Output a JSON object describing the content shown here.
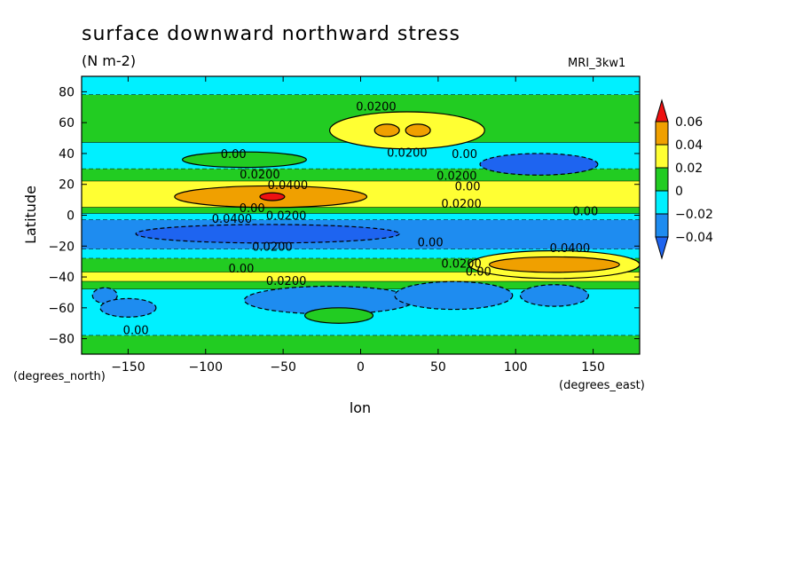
{
  "chart_data": {
    "type": "heatmap",
    "title": "surface downward northward stress",
    "units": "(N m-2)",
    "model": "MRI_3kw1",
    "xlabel": "lon",
    "ylabel": "Latitude",
    "x_unit_label": "(degrees_east)",
    "y_unit_label": "(degrees_north)",
    "xlim": [
      -180,
      180
    ],
    "ylim": [
      -90,
      90
    ],
    "x_ticks": [
      -150,
      -100,
      -50,
      0,
      50,
      100,
      150
    ],
    "y_ticks": [
      80,
      60,
      40,
      20,
      0,
      -20,
      -40,
      -60,
      -80
    ],
    "colorbar": {
      "levels": [
        -0.04,
        -0.02,
        0,
        0.02,
        0.04,
        0.06
      ],
      "labels": [
        "0.06",
        "0.04",
        "0.02",
        "0",
        "−0.02",
        "−0.04"
      ],
      "colors": {
        "below_-0.04": "#1e64f0",
        "-0.04_to_-0.02": "#1e8cf0",
        "-0.02_to_0": "#00f0ff",
        "0_to_0.02": "#22cc22",
        "0.02_to_0.04": "#ffff33",
        "0.04_to_0.06": "#f0a000",
        "above_0.06": "#ee1111"
      }
    },
    "zonal_bands": [
      {
        "lat_from": 90,
        "lat_to": 78,
        "value": -0.01
      },
      {
        "lat_from": 78,
        "lat_to": 47,
        "value": 0.01
      },
      {
        "lat_from": 47,
        "lat_to": 30,
        "value": -0.01
      },
      {
        "lat_from": 30,
        "lat_to": 22,
        "value": 0.01
      },
      {
        "lat_from": 22,
        "lat_to": 5,
        "value": 0.03
      },
      {
        "lat_from": 5,
        "lat_to": 1,
        "value": 0.01
      },
      {
        "lat_from": 1,
        "lat_to": -3,
        "value": -0.01
      },
      {
        "lat_from": -3,
        "lat_to": -22,
        "value": -0.03
      },
      {
        "lat_from": -22,
        "lat_to": -28,
        "value": -0.01
      },
      {
        "lat_from": -28,
        "lat_to": -37,
        "value": 0.01
      },
      {
        "lat_from": -37,
        "lat_to": -43,
        "value": 0.03
      },
      {
        "lat_from": -43,
        "lat_to": -48,
        "value": 0.01
      },
      {
        "lat_from": -48,
        "lat_to": -78,
        "value": -0.01
      },
      {
        "lat_from": -78,
        "lat_to": -90,
        "value": 0.01
      }
    ],
    "features": [
      {
        "lon": -58,
        "lat": 12,
        "rlon": 62,
        "rlat": 7,
        "value": 0.05
      },
      {
        "lon": -57,
        "lat": 12,
        "rlon": 8,
        "rlat": 2.5,
        "value": 0.07
      },
      {
        "lon": 30,
        "lat": 55,
        "rlon": 50,
        "rlat": 12,
        "value": 0.03
      },
      {
        "lon": 17,
        "lat": 55,
        "rlon": 8,
        "rlat": 4,
        "value": 0.05
      },
      {
        "lon": 37,
        "lat": 55,
        "rlon": 8,
        "rlat": 4,
        "value": 0.05
      },
      {
        "lon": 125,
        "lat": -32,
        "rlon": 55,
        "rlat": 9,
        "value": 0.03
      },
      {
        "lon": 125,
        "lat": -32,
        "rlon": 42,
        "rlat": 5,
        "value": 0.05
      },
      {
        "lon": -60,
        "lat": -12,
        "rlon": 85,
        "rlat": 6,
        "value": -0.05
      },
      {
        "lon": 115,
        "lat": 33,
        "rlon": 38,
        "rlat": 7,
        "value": -0.05
      },
      {
        "lon": -75,
        "lat": 36,
        "rlon": 40,
        "rlat": 5,
        "value": 0.01
      },
      {
        "lon": -20,
        "lat": -55,
        "rlon": 55,
        "rlat": 9,
        "value": -0.03
      },
      {
        "lon": 60,
        "lat": -52,
        "rlon": 38,
        "rlat": 9,
        "value": -0.03
      },
      {
        "lon": 125,
        "lat": -52,
        "rlon": 22,
        "rlat": 7,
        "value": -0.03
      },
      {
        "lon": -165,
        "lat": -52,
        "rlon": 8,
        "rlat": 5,
        "value": -0.03
      },
      {
        "lon": -14,
        "lat": -65,
        "rlon": 22,
        "rlat": 5,
        "value": 0.01
      },
      {
        "lon": -150,
        "lat": -60,
        "rlon": 18,
        "rlat": 6,
        "value": -0.03
      }
    ],
    "contour_labels": [
      {
        "text": "0.0200",
        "lon": 10,
        "lat": 68
      },
      {
        "text": "0.00",
        "lon": -82,
        "lat": 37
      },
      {
        "text": "0.0200",
        "lon": 30,
        "lat": 38
      },
      {
        "text": "0.00",
        "lon": 67,
        "lat": 37
      },
      {
        "text": "0.0200",
        "lon": -65,
        "lat": 24
      },
      {
        "text": "0.0400",
        "lon": -47,
        "lat": 17
      },
      {
        "text": "0.0200",
        "lon": 62,
        "lat": 23
      },
      {
        "text": "0.00",
        "lon": 69,
        "lat": 16
      },
      {
        "text": "0.0200",
        "lon": 65,
        "lat": 5
      },
      {
        "text": "0.00",
        "lon": -70,
        "lat": 2
      },
      {
        "text": "0.0200",
        "lon": -48,
        "lat": -3
      },
      {
        "text": "0.00",
        "lon": 145,
        "lat": 0
      },
      {
        "text": "0.0400",
        "lon": -83,
        "lat": -5
      },
      {
        "text": "0.0200",
        "lon": -57,
        "lat": -23
      },
      {
        "text": "0.00",
        "lon": 45,
        "lat": -20
      },
      {
        "text": "0.0400",
        "lon": 135,
        "lat": -24
      },
      {
        "text": "0.00",
        "lon": -77,
        "lat": -37
      },
      {
        "text": "0.0200",
        "lon": 65,
        "lat": -34
      },
      {
        "text": "0.00",
        "lon": 76,
        "lat": -39
      },
      {
        "text": "0.0200",
        "lon": -48,
        "lat": -45
      },
      {
        "text": "0.00",
        "lon": -145,
        "lat": -77
      }
    ],
    "legend_position": "right"
  }
}
